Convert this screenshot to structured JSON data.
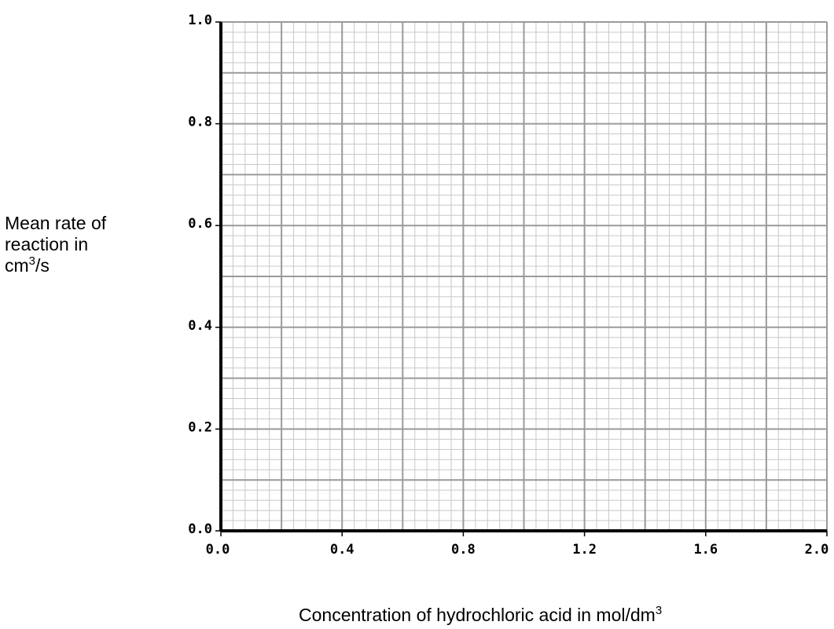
{
  "chart_data": {
    "type": "scatter",
    "title": "",
    "xlabel": {
      "text": "Concentration of hydrochloric acid in mol/dm",
      "sup": "3"
    },
    "ylabel": {
      "lines": [
        "Mean rate of",
        "reaction in"
      ],
      "unit": "cm",
      "unit_sup": "3",
      "unit_tail": "/s"
    },
    "xlim": [
      0.0,
      2.0
    ],
    "ylim": [
      0.0,
      1.0
    ],
    "xticks": [
      "0.0",
      "0.4",
      "0.8",
      "1.2",
      "1.6",
      "2.0"
    ],
    "yticks": [
      "0.0",
      "0.2",
      "0.4",
      "0.6",
      "0.8",
      "1.0"
    ],
    "grid": {
      "major_step_x": 0.2,
      "major_step_y": 0.1,
      "minor_divisions": 5
    },
    "series": [],
    "colors": {
      "grid_minor": "#c8c8c8",
      "grid_major": "#9a9a9a",
      "axis": "#000000"
    }
  }
}
